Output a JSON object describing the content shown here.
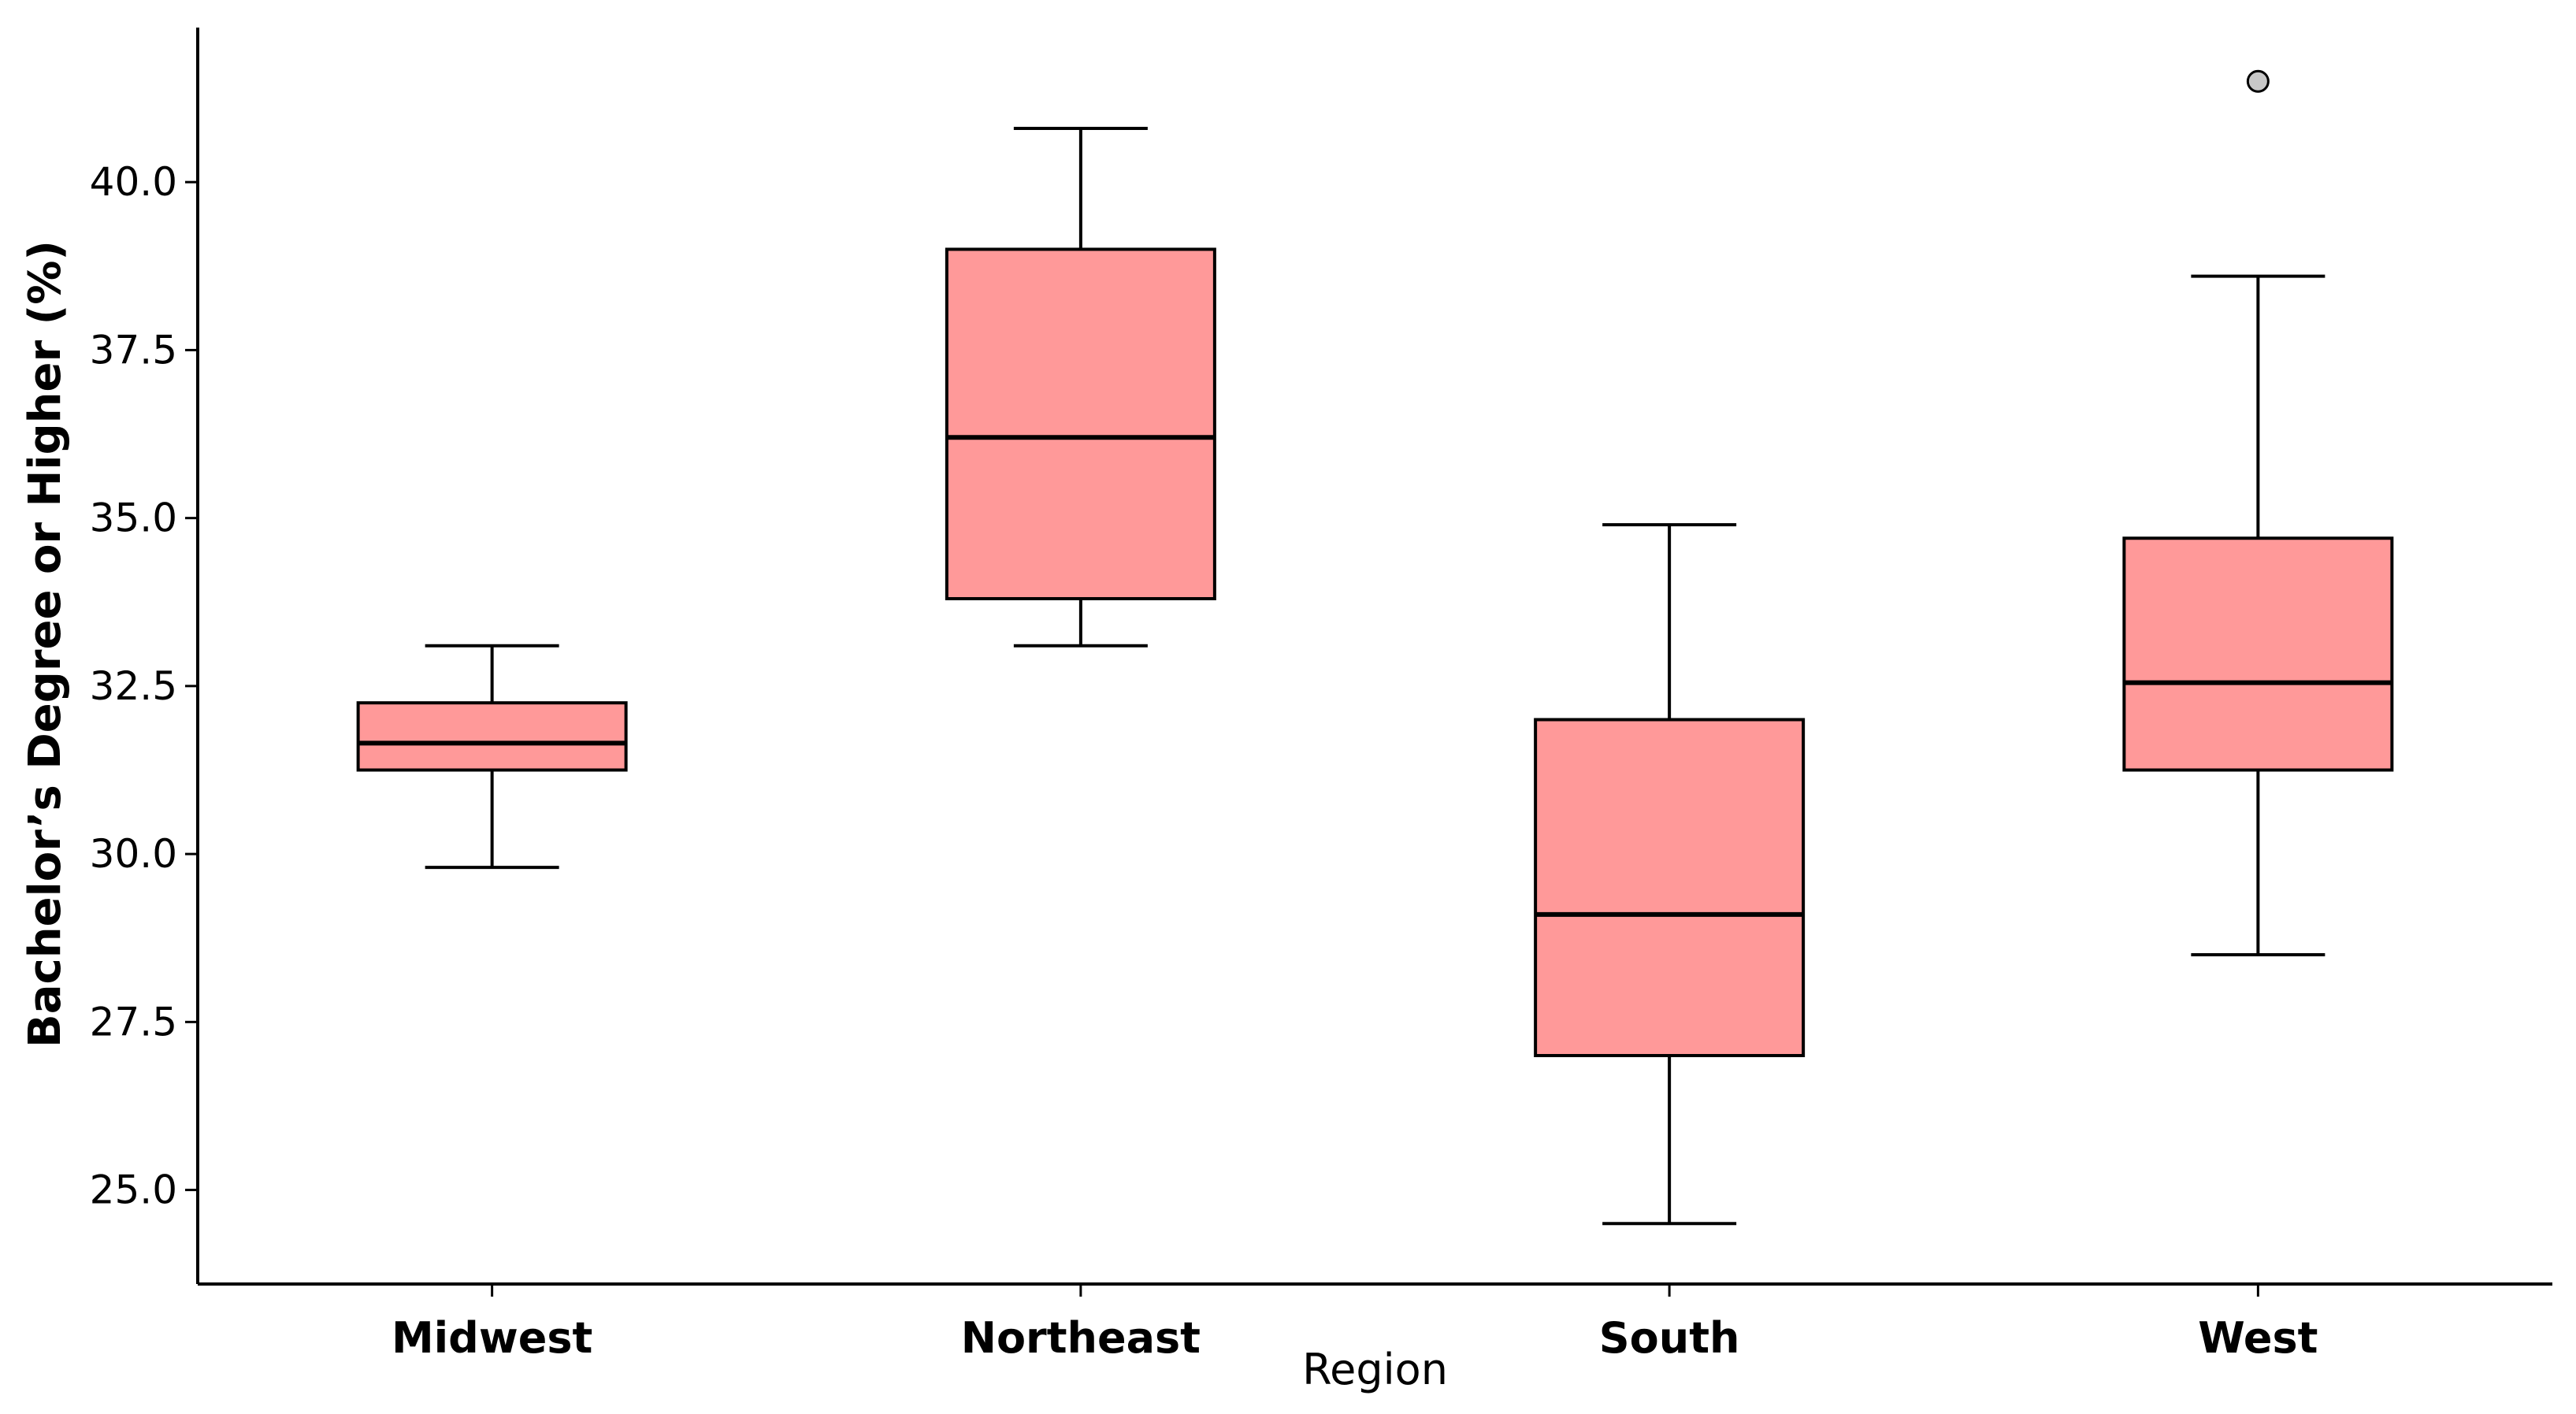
{
  "chart_data": {
    "type": "box",
    "xlabel": "Region",
    "ylabel": "Bachelor’s Degree or Higher (%)",
    "categories": [
      "Midwest",
      "Northeast",
      "South",
      "West"
    ],
    "ylim": [
      23.6,
      42.3
    ],
    "yticks": [
      25.0,
      27.5,
      30.0,
      32.5,
      35.0,
      37.5,
      40.0
    ],
    "ytick_labels": [
      "25.0",
      "27.5",
      "30.0",
      "32.5",
      "35.0",
      "37.5",
      "40.0"
    ],
    "grid": false,
    "boxes": [
      {
        "category": "Midwest",
        "whisker_low": 29.8,
        "q1": 31.25,
        "median": 31.65,
        "q3": 32.25,
        "whisker_high": 33.1,
        "outliers": []
      },
      {
        "category": "Northeast",
        "whisker_low": 33.1,
        "q1": 33.8,
        "median": 36.2,
        "q3": 39.0,
        "whisker_high": 40.8,
        "outliers": []
      },
      {
        "category": "South",
        "whisker_low": 24.5,
        "q1": 27.0,
        "median": 29.1,
        "q3": 32.0,
        "whisker_high": 34.9,
        "outliers": []
      },
      {
        "category": "West",
        "whisker_low": 28.5,
        "q1": 31.25,
        "median": 32.55,
        "q3": 34.7,
        "whisker_high": 38.6,
        "outliers": [
          41.5
        ]
      }
    ],
    "colors": {
      "box_fill": "#ff9999",
      "line": "#000000",
      "outlier_fill": "#c8c8c8"
    }
  }
}
